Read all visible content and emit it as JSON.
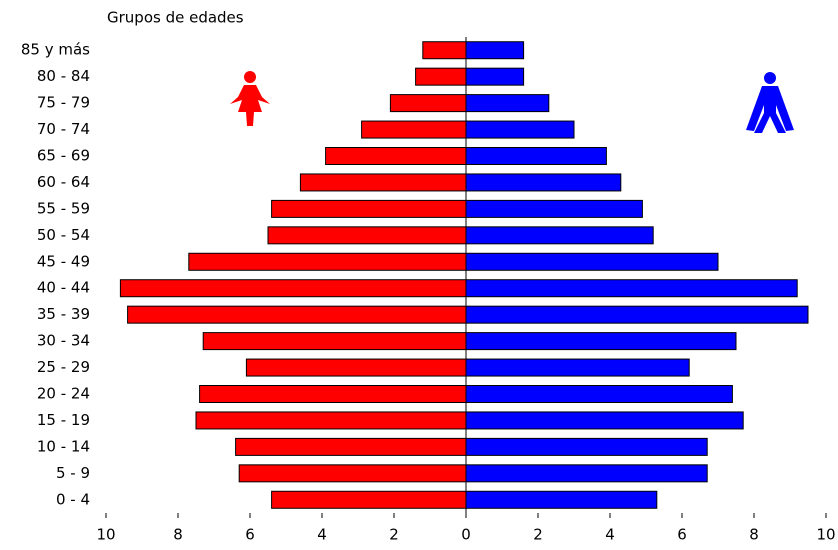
{
  "chart_data": {
    "type": "pyramid",
    "title": "Grupos de edades",
    "categories": [
      "85 y más",
      "80 - 84",
      "75 - 79",
      "70 - 74",
      "65 - 69",
      "60 - 64",
      "55 - 59",
      "50 - 54",
      "45 - 49",
      "40 - 44",
      "35 - 39",
      "30 - 34",
      "25 - 29",
      "20 - 24",
      "15 - 19",
      "10 - 14",
      "5 - 9",
      "0 - 4"
    ],
    "series": [
      {
        "color": "#ff0000",
        "values": [
          -1.2,
          -1.4,
          -2.1,
          -2.9,
          -3.9,
          -4.6,
          -5.4,
          -5.5,
          -7.7,
          -9.6,
          -9.4,
          -7.3,
          -6.1,
          -7.4,
          -7.5,
          -6.4,
          -6.3,
          -5.4
        ]
      },
      {
        "color": "#0000ff",
        "values": [
          1.6,
          1.6,
          2.3,
          3.0,
          3.9,
          4.3,
          4.9,
          5.2,
          7.0,
          9.2,
          9.5,
          7.5,
          6.2,
          7.4,
          7.7,
          6.7,
          6.7,
          5.3
        ]
      }
    ],
    "xlim": [
      -10,
      10
    ],
    "xticks": [
      {
        "value": -10,
        "label": "10"
      },
      {
        "value": -8,
        "label": "8"
      },
      {
        "value": -6,
        "label": "6"
      },
      {
        "value": -4,
        "label": "4"
      },
      {
        "value": -2,
        "label": "2"
      },
      0,
      2,
      4,
      6,
      8,
      10
    ]
  }
}
